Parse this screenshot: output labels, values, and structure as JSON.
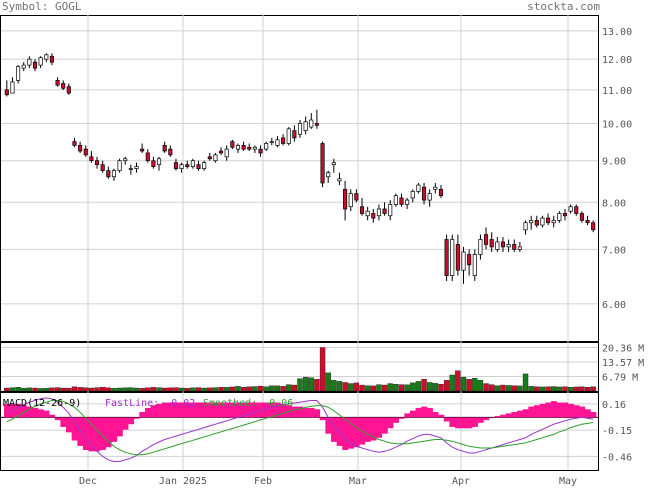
{
  "header": {
    "symbol_label": "Symbol: GOGL",
    "site": "stockta.com"
  },
  "colors": {
    "up": "#ffffff",
    "down": "#c8102e",
    "vol_up": "#1a7a1a",
    "vol_down": "#c8102e",
    "macd_fast": "#9932cc",
    "macd_smooth": "#2ca02c",
    "histogram": "#ff1493",
    "grid": "#d0d0d0"
  },
  "chart_data": {
    "type": "candlestick",
    "price_axis": {
      "ticks": [
        "13.00",
        "12.00",
        "11.00",
        "10.00",
        "9.00",
        "8.00",
        "7.00",
        "6.00"
      ],
      "scale": "log"
    },
    "x_labels": [
      "Dec",
      "Jan 2025",
      "Feb",
      "Mar",
      "Apr",
      "May"
    ],
    "volume": {
      "ticks": [
        "20.36 M",
        "13.57 M",
        "6.79 M"
      ]
    },
    "macd": {
      "title": "MACD(12-26-9)",
      "fast_label": "FastLine: -0.02",
      "smooth_label": "Smoothed: -0.06",
      "ticks": [
        "0.16",
        "-0.15",
        "-0.46"
      ]
    },
    "candles": [
      [
        11.0,
        11.3,
        10.8,
        10.85
      ],
      [
        10.9,
        11.4,
        10.9,
        11.25
      ],
      [
        11.3,
        11.8,
        11.2,
        11.75
      ],
      [
        11.7,
        11.9,
        11.6,
        11.8
      ],
      [
        11.8,
        12.1,
        11.7,
        12.0
      ],
      [
        11.9,
        12.0,
        11.6,
        11.7
      ],
      [
        11.8,
        12.1,
        11.7,
        12.05
      ],
      [
        12.0,
        12.2,
        11.9,
        12.15
      ],
      [
        12.1,
        12.2,
        11.8,
        11.9
      ],
      [
        11.3,
        11.4,
        11.1,
        11.15
      ],
      [
        11.2,
        11.3,
        11.0,
        11.05
      ],
      [
        11.1,
        11.2,
        10.85,
        10.9
      ],
      [
        9.5,
        9.6,
        9.35,
        9.4
      ],
      [
        9.4,
        9.5,
        9.2,
        9.25
      ],
      [
        9.3,
        9.4,
        9.1,
        9.15
      ],
      [
        9.1,
        9.25,
        8.95,
        9.0
      ],
      [
        9.0,
        9.1,
        8.8,
        8.9
      ],
      [
        8.9,
        9.0,
        8.7,
        8.75
      ],
      [
        8.75,
        8.85,
        8.55,
        8.6
      ],
      [
        8.6,
        8.8,
        8.5,
        8.75
      ],
      [
        8.75,
        9.05,
        8.7,
        9.0
      ],
      [
        9.0,
        9.1,
        8.9,
        9.05
      ],
      [
        8.8,
        8.9,
        8.65,
        8.8
      ],
      [
        8.8,
        8.95,
        8.7,
        8.85
      ],
      [
        9.3,
        9.45,
        9.2,
        9.25
      ],
      [
        9.2,
        9.3,
        8.95,
        9.0
      ],
      [
        9.0,
        9.1,
        8.8,
        8.85
      ],
      [
        8.9,
        9.1,
        8.75,
        9.05
      ],
      [
        9.4,
        9.5,
        9.2,
        9.25
      ],
      [
        9.3,
        9.4,
        9.1,
        9.15
      ],
      [
        8.95,
        9.05,
        8.75,
        8.8
      ],
      [
        8.8,
        8.95,
        8.7,
        8.9
      ],
      [
        8.9,
        9.0,
        8.8,
        8.85
      ],
      [
        8.85,
        9.05,
        8.8,
        9.0
      ],
      [
        8.9,
        9.0,
        8.75,
        8.8
      ],
      [
        8.8,
        9.0,
        8.75,
        8.95
      ],
      [
        9.1,
        9.2,
        9.0,
        9.05
      ],
      [
        9.0,
        9.2,
        8.95,
        9.15
      ],
      [
        9.25,
        9.35,
        9.15,
        9.2
      ],
      [
        9.1,
        9.4,
        9.0,
        9.3
      ],
      [
        9.5,
        9.55,
        9.3,
        9.35
      ],
      [
        9.3,
        9.45,
        9.2,
        9.4
      ],
      [
        9.4,
        9.5,
        9.25,
        9.3
      ],
      [
        9.35,
        9.45,
        9.25,
        9.3
      ],
      [
        9.3,
        9.4,
        9.2,
        9.35
      ],
      [
        9.3,
        9.4,
        9.1,
        9.2
      ],
      [
        9.3,
        9.5,
        9.25,
        9.45
      ],
      [
        9.5,
        9.6,
        9.4,
        9.5
      ],
      [
        9.4,
        9.65,
        9.35,
        9.55
      ],
      [
        9.6,
        9.7,
        9.4,
        9.45
      ],
      [
        9.45,
        9.9,
        9.4,
        9.85
      ],
      [
        9.8,
        9.95,
        9.5,
        9.6
      ],
      [
        9.7,
        10.1,
        9.6,
        10.0
      ],
      [
        9.8,
        10.2,
        9.7,
        10.05
      ],
      [
        9.9,
        10.3,
        9.85,
        10.1
      ],
      [
        10.0,
        10.4,
        9.85,
        9.95
      ],
      [
        9.45,
        9.5,
        8.35,
        8.45
      ],
      [
        8.6,
        8.75,
        8.45,
        8.7
      ],
      [
        8.9,
        9.05,
        8.7,
        8.95
      ],
      [
        8.5,
        8.7,
        8.4,
        8.55
      ],
      [
        8.3,
        8.5,
        7.6,
        7.85
      ],
      [
        7.9,
        8.3,
        7.8,
        8.2
      ],
      [
        8.2,
        8.3,
        8.0,
        8.05
      ],
      [
        7.9,
        8.1,
        7.7,
        7.75
      ],
      [
        7.7,
        7.9,
        7.6,
        7.8
      ],
      [
        7.75,
        7.85,
        7.55,
        7.65
      ],
      [
        7.7,
        7.95,
        7.6,
        7.85
      ],
      [
        7.85,
        8.0,
        7.7,
        7.75
      ],
      [
        7.7,
        8.05,
        7.6,
        7.95
      ],
      [
        7.95,
        8.2,
        7.9,
        8.15
      ],
      [
        8.1,
        8.2,
        7.9,
        7.95
      ],
      [
        7.95,
        8.1,
        7.85,
        8.05
      ],
      [
        8.1,
        8.3,
        8.0,
        8.25
      ],
      [
        8.25,
        8.45,
        8.2,
        8.4
      ],
      [
        8.35,
        8.45,
        7.95,
        8.05
      ],
      [
        8.05,
        8.3,
        7.9,
        8.2
      ],
      [
        8.3,
        8.45,
        8.2,
        8.35
      ],
      [
        8.3,
        8.4,
        8.1,
        8.15
      ],
      [
        7.2,
        7.3,
        6.4,
        6.5
      ],
      [
        6.5,
        7.3,
        6.4,
        7.2
      ],
      [
        7.1,
        7.3,
        6.5,
        6.6
      ],
      [
        6.6,
        7.05,
        6.35,
        6.95
      ],
      [
        6.9,
        7.0,
        6.5,
        6.7
      ],
      [
        6.5,
        7.0,
        6.4,
        6.9
      ],
      [
        6.9,
        7.3,
        6.8,
        7.2
      ],
      [
        7.3,
        7.45,
        7.0,
        7.1
      ],
      [
        7.2,
        7.35,
        6.95,
        7.05
      ],
      [
        7.0,
        7.25,
        6.95,
        7.15
      ],
      [
        7.15,
        7.25,
        6.95,
        7.05
      ],
      [
        7.05,
        7.2,
        6.95,
        7.1
      ],
      [
        7.1,
        7.2,
        6.95,
        7.0
      ],
      [
        7.0,
        7.15,
        6.95,
        7.05
      ],
      [
        7.4,
        7.6,
        7.3,
        7.55
      ],
      [
        7.55,
        7.7,
        7.4,
        7.6
      ],
      [
        7.6,
        7.7,
        7.45,
        7.5
      ],
      [
        7.5,
        7.7,
        7.45,
        7.65
      ],
      [
        7.65,
        7.75,
        7.5,
        7.55
      ],
      [
        7.55,
        7.7,
        7.45,
        7.6
      ],
      [
        7.6,
        7.8,
        7.55,
        7.75
      ],
      [
        7.75,
        7.85,
        7.6,
        7.7
      ],
      [
        7.8,
        7.95,
        7.75,
        7.9
      ],
      [
        7.9,
        7.95,
        7.7,
        7.75
      ],
      [
        7.75,
        7.8,
        7.55,
        7.6
      ],
      [
        7.6,
        7.7,
        7.5,
        7.55
      ],
      [
        7.55,
        7.6,
        7.35,
        7.4
      ]
    ],
    "volumes": [
      1.4,
      1.6,
      1.8,
      1.3,
      1.5,
      1.4,
      1.2,
      1.3,
      1.5,
      1.6,
      1.4,
      1.3,
      2.0,
      1.7,
      1.5,
      1.4,
      1.6,
      1.8,
      1.5,
      1.3,
      1.4,
      1.5,
      1.6,
      1.4,
      1.3,
      1.5,
      1.7,
      1.6,
      1.4,
      1.5,
      1.6,
      1.4,
      1.3,
      1.5,
      1.6,
      1.4,
      1.5,
      1.6,
      1.8,
      1.7,
      1.9,
      2.2,
      1.8,
      2.0,
      2.1,
      2.3,
      2.0,
      2.5,
      2.4,
      2.2,
      3.0,
      2.8,
      5.8,
      6.5,
      6.2,
      5.5,
      20.36,
      8.5,
      5.0,
      4.5,
      4.0,
      3.5,
      3.8,
      2.8,
      2.5,
      2.4,
      3.0,
      2.8,
      3.5,
      3.2,
      3.0,
      2.9,
      3.8,
      4.5,
      5.5,
      4.0,
      3.6,
      3.2,
      5.0,
      7.5,
      9.5,
      6.5,
      5.5,
      6.0,
      5.0,
      3.5,
      3.0,
      2.5,
      2.8,
      2.6,
      2.5,
      2.4,
      8.0,
      2.2,
      2.0,
      1.9,
      2.0,
      2.1,
      1.9,
      2.0,
      1.8,
      1.9,
      2.0,
      1.8,
      2.0
    ],
    "macd_fast": [
      0.05,
      0.08,
      0.12,
      0.15,
      0.18,
      0.2,
      0.22,
      0.23,
      0.22,
      0.18,
      0.12,
      0.05,
      -0.05,
      -0.15,
      -0.25,
      -0.33,
      -0.4,
      -0.46,
      -0.5,
      -0.52,
      -0.52,
      -0.5,
      -0.48,
      -0.45,
      -0.4,
      -0.36,
      -0.32,
      -0.29,
      -0.26,
      -0.24,
      -0.22,
      -0.2,
      -0.18,
      -0.16,
      -0.14,
      -0.12,
      -0.1,
      -0.08,
      -0.06,
      -0.04,
      -0.02,
      0.0,
      0.02,
      0.04,
      0.06,
      0.08,
      0.1,
      0.12,
      0.14,
      0.15,
      0.16,
      0.17,
      0.18,
      0.19,
      0.2,
      0.2,
      0.12,
      0.0,
      -0.1,
      -0.18,
      -0.26,
      -0.3,
      -0.34,
      -0.36,
      -0.38,
      -0.4,
      -0.41,
      -0.4,
      -0.38,
      -0.35,
      -0.32,
      -0.28,
      -0.25,
      -0.22,
      -0.2,
      -0.2,
      -0.22,
      -0.24,
      -0.3,
      -0.35,
      -0.38,
      -0.4,
      -0.42,
      -0.42,
      -0.4,
      -0.38,
      -0.36,
      -0.34,
      -0.32,
      -0.3,
      -0.28,
      -0.26,
      -0.24,
      -0.2,
      -0.17,
      -0.14,
      -0.11,
      -0.08,
      -0.06,
      -0.04,
      -0.02,
      -0.01,
      0.0,
      -0.01,
      -0.02
    ],
    "macd_smooth": [
      -0.05,
      -0.02,
      0.02,
      0.06,
      0.1,
      0.13,
      0.16,
      0.18,
      0.2,
      0.2,
      0.19,
      0.16,
      0.12,
      0.06,
      -0.01,
      -0.08,
      -0.15,
      -0.22,
      -0.28,
      -0.34,
      -0.38,
      -0.41,
      -0.43,
      -0.44,
      -0.44,
      -0.43,
      -0.41,
      -0.39,
      -0.37,
      -0.35,
      -0.33,
      -0.31,
      -0.29,
      -0.27,
      -0.25,
      -0.23,
      -0.21,
      -0.19,
      -0.17,
      -0.15,
      -0.13,
      -0.11,
      -0.09,
      -0.07,
      -0.05,
      -0.03,
      -0.01,
      0.01,
      0.03,
      0.05,
      0.07,
      0.09,
      0.1,
      0.12,
      0.13,
      0.14,
      0.14,
      0.12,
      0.08,
      0.03,
      -0.02,
      -0.07,
      -0.12,
      -0.16,
      -0.2,
      -0.23,
      -0.26,
      -0.28,
      -0.3,
      -0.31,
      -0.31,
      -0.31,
      -0.3,
      -0.29,
      -0.28,
      -0.27,
      -0.26,
      -0.26,
      -0.27,
      -0.28,
      -0.3,
      -0.32,
      -0.34,
      -0.35,
      -0.36,
      -0.36,
      -0.36,
      -0.35,
      -0.34,
      -0.33,
      -0.32,
      -0.31,
      -0.3,
      -0.28,
      -0.26,
      -0.24,
      -0.22,
      -0.2,
      -0.17,
      -0.15,
      -0.12,
      -0.1,
      -0.08,
      -0.07,
      -0.06
    ]
  }
}
